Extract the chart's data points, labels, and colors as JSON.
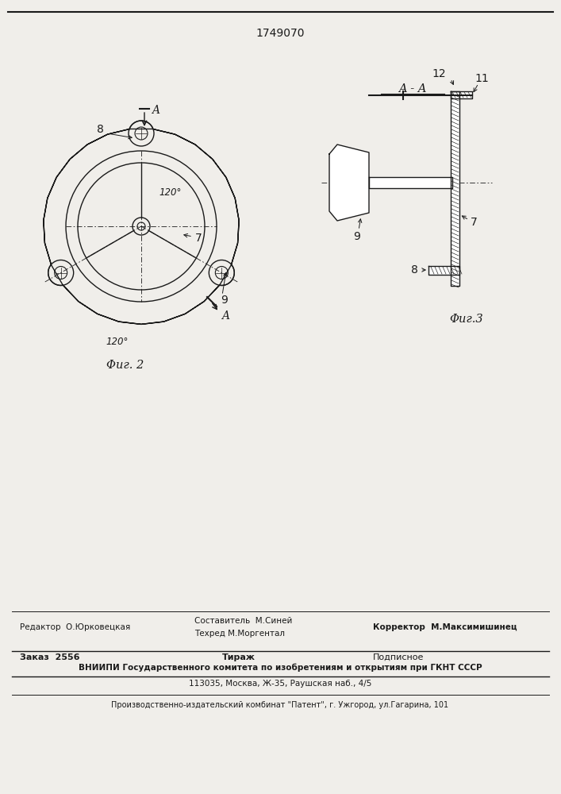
{
  "patent_number": "1749070",
  "bg_color": "#f0eeea",
  "line_color": "#1a1a1a",
  "fig2_caption": "Φиг. 2",
  "fig3_caption": "Φиг.3",
  "section_label": "A - A",
  "footer_editor": "Редактор  О.Юрковецкая",
  "footer_comp1": "Составитель  М.Синей",
  "footer_comp2": "Техред М.Моргентал",
  "footer_corrector": "Корректор  М.Максимишинец",
  "footer_order": "Заказ  2556",
  "footer_tirazh": "Тираж",
  "footer_podp": "Подписное",
  "footer_vniip": "ВНИИПИ Государственного комитета по изобретениям и открытиям при ГКНТ СССР",
  "footer_addr": "113035, Москва, Ж-35, Раушская наб., 4/5",
  "footer_patent": "Производственно-издательский комбинат \"Патент\", г. Ужгород, ул.Гагарина, 101"
}
